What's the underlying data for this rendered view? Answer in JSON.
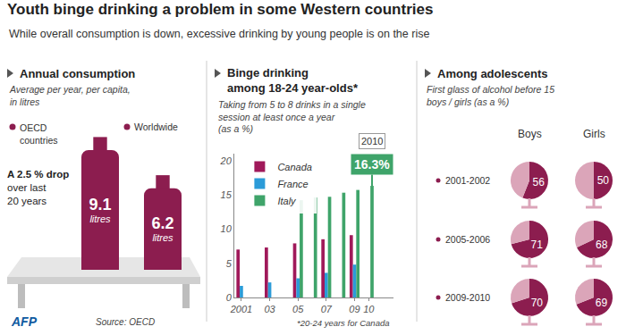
{
  "title": "Youth binge drinking a problem in some Western countries",
  "subtitle": "While overall consumption is down, excessive drinking by young people is on the rise",
  "source": "Source: OECD",
  "credit": "AFP",
  "chart_data": [
    {
      "type": "bar",
      "title": "Annual consumption",
      "subtitle": [
        "Average per year, per capita,",
        "in litres"
      ],
      "categories": [
        "OECD countries",
        "Worldwide"
      ],
      "values": [
        9.1,
        6.2
      ],
      "value_labels": [
        "9.1 litres",
        "6.2 litres"
      ],
      "color": "#8c1d4f",
      "ylim": [
        0,
        11
      ],
      "tick_labels": false,
      "data_labels": true,
      "annotations": [
        {
          "text": [
            "A 2.5 % drop",
            "over last",
            "20 years"
          ]
        }
      ]
    },
    {
      "type": "bar",
      "title": [
        "Binge drinking",
        "among 18-24 year-olds*"
      ],
      "subtitle": [
        "Taking from 5 to 8 drinks in a single",
        "session at least once a year",
        "(as a %)"
      ],
      "categories": [
        "2001",
        null,
        "03",
        null,
        "05",
        null,
        "07",
        null,
        "09",
        "10"
      ],
      "series": [
        {
          "name": "Canada",
          "color": "#a0195a",
          "values": [
            7.0,
            null,
            7.3,
            null,
            7.9,
            null,
            8.5,
            null,
            9.1,
            null
          ]
        },
        {
          "name": "France",
          "color": "#2b9bd8",
          "values": [
            1.7,
            null,
            2.2,
            null,
            2.8,
            null,
            3.6,
            null,
            4.8,
            null
          ]
        },
        {
          "name": "Italy",
          "color": "#3fa46a",
          "values": [
            null,
            null,
            null,
            null,
            14.2,
            14.6,
            14.7,
            15.3,
            15.7,
            16.3
          ]
        }
      ],
      "ylim": [
        0,
        21
      ],
      "yticks": [
        0,
        5,
        10,
        15,
        20
      ],
      "grid": false,
      "legend": "top left",
      "annotations": [
        {
          "category": "10",
          "series": "Italy",
          "label": "2010",
          "text": "16.3%"
        }
      ],
      "note": "*20-24 years for Canada"
    },
    {
      "type": "pie",
      "title": "Among adolescents",
      "subtitle": [
        "First glass of alcohol before 15",
        "boys / girls (as a %)"
      ],
      "columns": [
        "Boys",
        "Girls"
      ],
      "rows": [
        {
          "label": "2001-2002",
          "values": [
            56,
            50
          ]
        },
        {
          "label": "2005-2006",
          "values": [
            71,
            68
          ]
        },
        {
          "label": "2009-2010",
          "values": [
            70,
            69
          ]
        }
      ],
      "colors": [
        "#8c1d4f",
        "#dba5b9"
      ],
      "data_labels": true
    }
  ]
}
